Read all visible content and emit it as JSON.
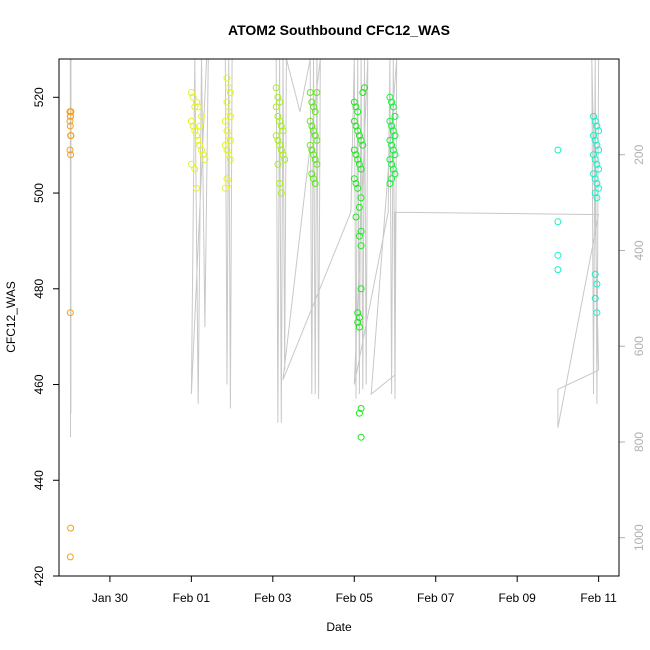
{
  "chart_data": {
    "type": "scatter",
    "title": "ATOM2 Southbound CFC12_WAS",
    "xlabel": "Date",
    "ylabel": "CFC12_WAS",
    "x_is_date": true,
    "xlim": [
      "2017-01-28T18:00",
      "2017-02-11T12:00"
    ],
    "ylim": [
      420,
      528
    ],
    "x_ticks": [
      {
        "date": "2017-01-30",
        "label": "Jan 30"
      },
      {
        "date": "2017-02-01",
        "label": "Feb 01"
      },
      {
        "date": "2017-02-03",
        "label": "Feb 03"
      },
      {
        "date": "2017-02-05",
        "label": "Feb 05"
      },
      {
        "date": "2017-02-07",
        "label": "Feb 07"
      },
      {
        "date": "2017-02-09",
        "label": "Feb 09"
      },
      {
        "date": "2017-02-11",
        "label": "Feb 11"
      }
    ],
    "y_ticks": [
      420,
      440,
      460,
      480,
      500,
      520
    ],
    "secondary_axis": {
      "side": "right",
      "reversed": true,
      "ylim": [
        0,
        1080
      ],
      "ticks": [
        200,
        400,
        600,
        800,
        1000
      ],
      "line_color": "#c8c8c8",
      "track": [
        [
          "2017-01-29T00:40",
          0
        ],
        [
          "2017-01-29T00:48",
          790
        ],
        [
          "2017-01-29T00:55",
          0
        ],
        [
          "2017-01-29T01:00",
          740
        ],
        [
          "2017-01-29T01:06",
          0
        ],
        [
          "2017-01-30T06:00",
          0
        ],
        [
          "2017-02-01T09:00",
          0
        ],
        [
          "2017-02-01T00:00",
          700
        ],
        [
          "2017-02-01T02:00",
          0
        ],
        [
          "2017-02-01T04:00",
          720
        ],
        [
          "2017-02-01T06:00",
          0
        ],
        [
          "2017-02-01T08:00",
          560
        ],
        [
          "2017-02-01T10:00",
          0
        ],
        [
          "2017-02-01T10:00",
          0
        ],
        [
          "2017-02-01T20:00",
          0
        ],
        [
          "2017-02-01T21:00",
          680
        ],
        [
          "2017-02-01T22:00",
          0
        ],
        [
          "2017-02-01T23:00",
          730
        ],
        [
          "2017-02-02T00:00",
          0
        ],
        [
          "2017-02-02T18:00",
          0
        ],
        [
          "2017-02-03T02:00",
          0
        ],
        [
          "2017-02-03T03:00",
          760
        ],
        [
          "2017-02-03T04:00",
          0
        ],
        [
          "2017-02-03T05:00",
          760
        ],
        [
          "2017-02-03T06:00",
          0
        ],
        [
          "2017-02-03T07:00",
          650
        ],
        [
          "2017-02-03T08:00",
          0
        ],
        [
          "2017-02-03T16:00",
          110
        ],
        [
          "2017-02-03T22:00",
          0
        ],
        [
          "2017-02-03T23:00",
          700
        ],
        [
          "2017-02-04T00:00",
          0
        ],
        [
          "2017-02-04T01:00",
          700
        ],
        [
          "2017-02-04T02:00",
          0
        ],
        [
          "2017-02-04T03:00",
          710
        ],
        [
          "2017-02-04T04:00",
          0
        ],
        [
          "2017-02-03T06:00",
          670
        ],
        [
          "2017-02-04T22:00",
          320
        ],
        [
          "2017-02-05T00:00",
          0
        ],
        [
          "2017-02-05T01:00",
          710
        ],
        [
          "2017-02-05T02:00",
          0
        ],
        [
          "2017-02-05T03:00",
          700
        ],
        [
          "2017-02-05T04:00",
          0
        ],
        [
          "2017-02-05T05:00",
          690
        ],
        [
          "2017-02-05T06:00",
          0
        ],
        [
          "2017-02-05T07:00",
          680
        ],
        [
          "2017-02-05T08:00",
          0
        ],
        [
          "2017-02-05T00:00",
          680
        ],
        [
          "2017-02-05T20:00",
          320
        ],
        [
          "2017-02-05T21:00",
          0
        ],
        [
          "2017-02-05T22:00",
          700
        ],
        [
          "2017-02-05T23:00",
          0
        ],
        [
          "2017-02-06T00:00",
          710
        ],
        [
          "2017-02-06T01:00",
          0
        ],
        [
          "2017-02-05T10:00",
          700
        ],
        [
          "2017-02-06T00:00",
          660
        ],
        [
          "2017-02-06T00:00",
          320
        ],
        [
          "2017-02-11T00:00",
          325
        ],
        [
          "2017-02-10T00:00",
          770
        ],
        [
          "2017-02-10T00:00",
          690
        ],
        [
          "2017-02-11T00:00",
          650
        ],
        [
          "2017-02-10T20:00",
          0
        ],
        [
          "2017-02-10T21:00",
          700
        ],
        [
          "2017-02-10T22:00",
          0
        ],
        [
          "2017-02-10T23:00",
          720
        ],
        [
          "2017-02-11T00:00",
          0
        ]
      ]
    },
    "series": [
      {
        "color": "#f4a11c",
        "points": [
          [
            "2017-01-29T00:30",
            517
          ],
          [
            "2017-01-29T00:35",
            517
          ],
          [
            "2017-01-29T00:40",
            516
          ],
          [
            "2017-01-29T00:50",
            516
          ],
          [
            "2017-01-29T01:00",
            517
          ],
          [
            "2017-01-29T00:30",
            515
          ],
          [
            "2017-01-29T00:40",
            514
          ],
          [
            "2017-01-29T00:50",
            512
          ],
          [
            "2017-01-29T01:00",
            512
          ],
          [
            "2017-01-29T00:30",
            509
          ],
          [
            "2017-01-29T00:50",
            508
          ],
          [
            "2017-01-29T00:40",
            475
          ],
          [
            "2017-01-29T00:50",
            430
          ],
          [
            "2017-01-29T00:40",
            424
          ]
        ]
      },
      {
        "color": "#e6f227",
        "points": [
          [
            "2017-02-01T00:00",
            521
          ],
          [
            "2017-02-01T01:00",
            520
          ],
          [
            "2017-02-01T02:00",
            518
          ],
          [
            "2017-02-01T03:00",
            519
          ],
          [
            "2017-02-01T04:00",
            518
          ],
          [
            "2017-02-01T00:00",
            515
          ],
          [
            "2017-02-01T01:00",
            514
          ],
          [
            "2017-02-01T02:00",
            513
          ],
          [
            "2017-02-01T03:00",
            512
          ],
          [
            "2017-02-01T04:00",
            511
          ],
          [
            "2017-02-01T05:00",
            510
          ],
          [
            "2017-02-01T06:00",
            509
          ],
          [
            "2017-02-01T07:00",
            508
          ],
          [
            "2017-02-01T08:00",
            507
          ],
          [
            "2017-02-01T00:00",
            506
          ],
          [
            "2017-02-01T02:00",
            505
          ],
          [
            "2017-02-01T05:00",
            514
          ],
          [
            "2017-02-01T06:00",
            516
          ],
          [
            "2017-02-01T03:00",
            501
          ],
          [
            "2017-02-01T21:00",
            524
          ],
          [
            "2017-02-01T22:00",
            522
          ],
          [
            "2017-02-01T23:00",
            521
          ],
          [
            "2017-02-01T21:00",
            519
          ],
          [
            "2017-02-01T22:00",
            517
          ],
          [
            "2017-02-01T23:00",
            516
          ],
          [
            "2017-02-01T20:00",
            515
          ],
          [
            "2017-02-01T21:00",
            513
          ],
          [
            "2017-02-01T22:00",
            512
          ],
          [
            "2017-02-01T23:00",
            511
          ],
          [
            "2017-02-01T20:00",
            510
          ],
          [
            "2017-02-01T21:00",
            509
          ],
          [
            "2017-02-01T22:00",
            508
          ],
          [
            "2017-02-01T23:00",
            507
          ],
          [
            "2017-02-01T21:00",
            503
          ],
          [
            "2017-02-01T22:00",
            502
          ],
          [
            "2017-02-01T20:00",
            501
          ]
        ]
      },
      {
        "color": "#a8ef1c",
        "points": [
          [
            "2017-02-03T02:00",
            522
          ],
          [
            "2017-02-03T03:00",
            520
          ],
          [
            "2017-02-03T04:00",
            519
          ],
          [
            "2017-02-03T02:00",
            518
          ],
          [
            "2017-02-03T03:00",
            516
          ],
          [
            "2017-02-03T04:00",
            515
          ],
          [
            "2017-02-03T05:00",
            514
          ],
          [
            "2017-02-03T06:00",
            513
          ],
          [
            "2017-02-03T02:00",
            512
          ],
          [
            "2017-02-03T03:00",
            511
          ],
          [
            "2017-02-03T04:00",
            510
          ],
          [
            "2017-02-03T05:00",
            509
          ],
          [
            "2017-02-03T06:00",
            508
          ],
          [
            "2017-02-03T07:00",
            507
          ],
          [
            "2017-02-03T03:00",
            506
          ],
          [
            "2017-02-03T04:00",
            502
          ],
          [
            "2017-02-03T05:00",
            500
          ]
        ]
      },
      {
        "color": "#5fe81a",
        "points": [
          [
            "2017-02-03T22:00",
            521
          ],
          [
            "2017-02-03T23:00",
            519
          ],
          [
            "2017-02-04T00:00",
            518
          ],
          [
            "2017-02-04T01:00",
            517
          ],
          [
            "2017-02-04T02:00",
            521
          ],
          [
            "2017-02-03T22:00",
            515
          ],
          [
            "2017-02-03T23:00",
            514
          ],
          [
            "2017-02-04T00:00",
            513
          ],
          [
            "2017-02-04T01:00",
            512
          ],
          [
            "2017-02-04T02:00",
            511
          ],
          [
            "2017-02-03T22:00",
            510
          ],
          [
            "2017-02-03T23:00",
            509
          ],
          [
            "2017-02-04T00:00",
            508
          ],
          [
            "2017-02-04T01:00",
            507
          ],
          [
            "2017-02-04T02:00",
            506
          ],
          [
            "2017-02-03T23:00",
            504
          ],
          [
            "2017-02-04T00:00",
            503
          ],
          [
            "2017-02-04T01:00",
            502
          ]
        ]
      },
      {
        "color": "#1fe81c",
        "points": [
          [
            "2017-02-05T00:00",
            519
          ],
          [
            "2017-02-05T01:00",
            518
          ],
          [
            "2017-02-05T02:00",
            517
          ],
          [
            "2017-02-05T00:00",
            515
          ],
          [
            "2017-02-05T01:00",
            514
          ],
          [
            "2017-02-05T02:00",
            513
          ],
          [
            "2017-02-05T03:00",
            512
          ],
          [
            "2017-02-05T04:00",
            511
          ],
          [
            "2017-02-05T05:00",
            510
          ],
          [
            "2017-02-05T00:00",
            509
          ],
          [
            "2017-02-05T01:00",
            508
          ],
          [
            "2017-02-05T02:00",
            507
          ],
          [
            "2017-02-05T03:00",
            506
          ],
          [
            "2017-02-05T04:00",
            505
          ],
          [
            "2017-02-05T00:00",
            503
          ],
          [
            "2017-02-05T01:00",
            502
          ],
          [
            "2017-02-05T02:00",
            501
          ],
          [
            "2017-02-05T04:00",
            499
          ],
          [
            "2017-02-05T03:00",
            497
          ],
          [
            "2017-02-05T01:00",
            495
          ],
          [
            "2017-02-05T04:00",
            492
          ],
          [
            "2017-02-05T03:00",
            491
          ],
          [
            "2017-02-05T04:00",
            489
          ],
          [
            "2017-02-05T04:00",
            480
          ],
          [
            "2017-02-05T02:00",
            475
          ],
          [
            "2017-02-05T03:00",
            474
          ],
          [
            "2017-02-05T02:00",
            473
          ],
          [
            "2017-02-05T03:00",
            472
          ],
          [
            "2017-02-05T04:00",
            455
          ],
          [
            "2017-02-05T03:00",
            454
          ],
          [
            "2017-02-05T04:00",
            449
          ],
          [
            "2017-02-05T06:00",
            522
          ],
          [
            "2017-02-05T05:00",
            521
          ]
        ]
      },
      {
        "color": "#16f03c",
        "points": [
          [
            "2017-02-05T21:00",
            520
          ],
          [
            "2017-02-05T22:00",
            519
          ],
          [
            "2017-02-05T23:00",
            518
          ],
          [
            "2017-02-06T00:00",
            516
          ],
          [
            "2017-02-05T21:00",
            515
          ],
          [
            "2017-02-05T22:00",
            514
          ],
          [
            "2017-02-05T23:00",
            513
          ],
          [
            "2017-02-06T00:00",
            512
          ],
          [
            "2017-02-05T21:00",
            511
          ],
          [
            "2017-02-05T22:00",
            510
          ],
          [
            "2017-02-05T23:00",
            509
          ],
          [
            "2017-02-06T00:00",
            508
          ],
          [
            "2017-02-05T21:00",
            507
          ],
          [
            "2017-02-05T22:00",
            506
          ],
          [
            "2017-02-05T23:00",
            505
          ],
          [
            "2017-02-06T00:00",
            504
          ],
          [
            "2017-02-05T22:00",
            503
          ],
          [
            "2017-02-05T21:00",
            502
          ]
        ]
      },
      {
        "color": "#1cefc4",
        "points": [
          [
            "2017-02-10T00:00",
            509
          ],
          [
            "2017-02-10T00:00",
            494
          ],
          [
            "2017-02-10T00:00",
            487
          ],
          [
            "2017-02-10T00:00",
            484
          ],
          [
            "2017-02-10T21:00",
            516
          ],
          [
            "2017-02-10T22:00",
            515
          ],
          [
            "2017-02-10T23:00",
            514
          ],
          [
            "2017-02-11T00:00",
            513
          ],
          [
            "2017-02-10T21:00",
            512
          ],
          [
            "2017-02-10T22:00",
            511
          ],
          [
            "2017-02-10T23:00",
            510
          ],
          [
            "2017-02-11T00:00",
            509
          ],
          [
            "2017-02-10T21:00",
            508
          ],
          [
            "2017-02-10T22:00",
            507
          ],
          [
            "2017-02-10T23:00",
            506
          ],
          [
            "2017-02-11T00:00",
            505
          ],
          [
            "2017-02-10T21:00",
            504
          ],
          [
            "2017-02-10T22:00",
            503
          ],
          [
            "2017-02-10T23:00",
            502
          ],
          [
            "2017-02-11T00:00",
            501
          ],
          [
            "2017-02-10T22:00",
            500
          ],
          [
            "2017-02-10T23:00",
            499
          ],
          [
            "2017-02-10T22:00",
            483
          ],
          [
            "2017-02-10T23:00",
            481
          ],
          [
            "2017-02-10T22:00",
            478
          ],
          [
            "2017-02-10T23:00",
            475
          ]
        ]
      }
    ]
  }
}
